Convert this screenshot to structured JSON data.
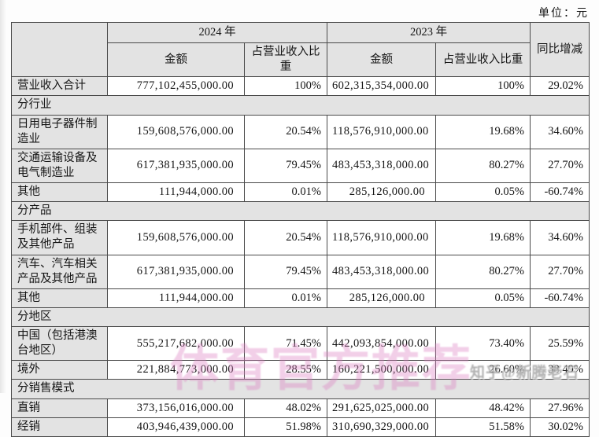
{
  "unit_label": "单位：元",
  "table": {
    "header": {
      "year_2024": "2024 年",
      "year_2023": "2023 年",
      "yoy": "同比增减",
      "amount": "金额",
      "share": "占营业收入比重"
    },
    "rows": [
      {
        "type": "data",
        "total": true,
        "label": "营业收入合计",
        "a2024": "777,102,455,000.00",
        "p2024": "100%",
        "a2023": "602,315,354,000.00",
        "p2023": "100%",
        "yoy": "29.02%"
      },
      {
        "type": "section",
        "label": "分行业"
      },
      {
        "type": "data",
        "label": "日用电子器件制造业",
        "a2024": "159,608,576,000.00",
        "p2024": "20.54%",
        "a2023": "118,576,910,000.00",
        "p2023": "19.68%",
        "yoy": "34.60%"
      },
      {
        "type": "data",
        "label": "交通运输设备及电气制造业",
        "a2024": "617,381,935,000.00",
        "p2024": "79.45%",
        "a2023": "483,453,318,000.00",
        "p2023": "80.27%",
        "yoy": "27.70%"
      },
      {
        "type": "data",
        "label": "其他",
        "a2024": "111,944,000.00",
        "p2024": "0.01%",
        "a2023": "285,126,000.00",
        "p2023": "0.05%",
        "yoy": "-60.74%"
      },
      {
        "type": "section",
        "label": "分产品"
      },
      {
        "type": "data",
        "label": "手机部件、组装及其他产品",
        "a2024": "159,608,576,000.00",
        "p2024": "20.54%",
        "a2023": "118,576,910,000.00",
        "p2023": "19.68%",
        "yoy": "34.60%"
      },
      {
        "type": "data",
        "label": "汽车、汽车相关产品及其他产品",
        "a2024": "617,381,935,000.00",
        "p2024": "79.45%",
        "a2023": "483,453,318,000.00",
        "p2023": "80.27%",
        "yoy": "27.70%"
      },
      {
        "type": "data",
        "label": "其他",
        "a2024": "111,944,000.00",
        "p2024": "0.01%",
        "a2023": "285,126,000.00",
        "p2023": "0.05%",
        "yoy": "-60.74%"
      },
      {
        "type": "section",
        "label": "分地区"
      },
      {
        "type": "data",
        "label": "中国（包括港澳台地区）",
        "a2024": "555,217,682,000.00",
        "p2024": "71.45%",
        "a2023": "442,093,854,000.00",
        "p2023": "73.40%",
        "yoy": "25.59%"
      },
      {
        "type": "data",
        "label": "境外",
        "a2024": "221,884,773,000.00",
        "p2024": "28.55%",
        "a2023": "160,221,500,000.00",
        "p2023": "26.60%",
        "yoy": "38.49%"
      },
      {
        "type": "section",
        "label": "分销售模式"
      },
      {
        "type": "data",
        "label": "直销",
        "a2024": "373,156,016,000.00",
        "p2024": "48.02%",
        "a2023": "291,625,025,000.00",
        "p2023": "48.42%",
        "yoy": "27.96%"
      },
      {
        "type": "data",
        "label": "经销",
        "a2024": "403,946,439,000.00",
        "p2024": "51.98%",
        "a2023": "310,690,329,000.00",
        "p2023": "51.58%",
        "yoy": "30.02%"
      }
    ]
  },
  "watermarks": {
    "center": "体育官方推荐",
    "corner": "知乎@新腾老石"
  },
  "colors": {
    "header_bg": "#e3e3e3",
    "border": "#4a4a4a",
    "center_watermark": "#de80c2",
    "corner_watermark": "#7d7d7d"
  }
}
